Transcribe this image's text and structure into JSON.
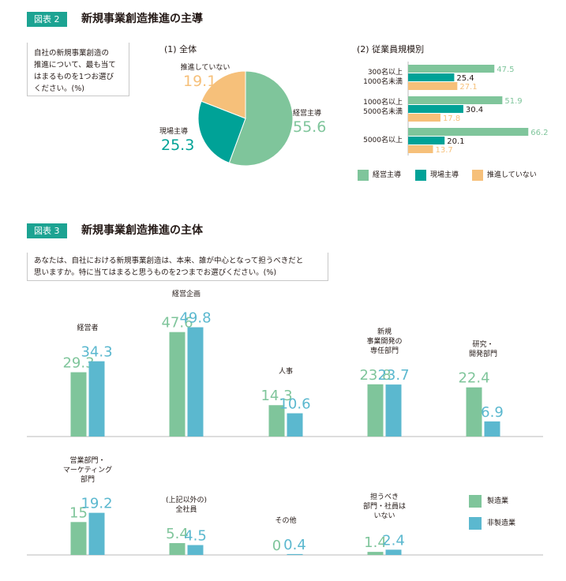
{
  "colors": {
    "keiei": "#7fc59b",
    "genba": "#00a297",
    "none": "#f6c07a",
    "mfg": "#7fc59b",
    "nonmfg": "#5bb8cf",
    "teal": "#1ca392",
    "axis": "#bbbbbb"
  },
  "fig2": {
    "badge": "図表 2",
    "title": "新規事業創造推進の主導",
    "question": [
      "自社の新規事業創造の",
      "推進について、最も当て",
      "はまるものを1つお選び",
      "ください。(%)"
    ],
    "pie_title": "(1) 全体",
    "bar_title": "(2) 従業員規模別"
  },
  "fig3": {
    "badge": "図表 3",
    "title": "新規事業創造推進の主体",
    "question": [
      "あなたは、自社における新規事業創造は、本来、誰が中心となって担うべきだと",
      "思いますか。特に当てはまると思うものを2つまでお選びください。(%)"
    ]
  },
  "chart_data": [
    {
      "type": "pie",
      "title": "(1) 全体",
      "slices": [
        {
          "label": "経営主導",
          "value": 55.6,
          "color": "#7fc59b"
        },
        {
          "label": "現場主導",
          "value": 25.3,
          "color": "#00a297"
        },
        {
          "label": "推進していない",
          "value": 19.1,
          "color": "#f6c07a"
        }
      ]
    },
    {
      "type": "bar",
      "orientation": "horizontal",
      "title": "(2) 従業員規模別",
      "categories": [
        [
          "300名以上",
          "1000名未満"
        ],
        [
          "1000名以上",
          "5000名未満"
        ],
        [
          "5000名以上"
        ]
      ],
      "series": [
        {
          "name": "経営主導",
          "values": [
            47.5,
            51.9,
            66.2
          ],
          "color": "#7fc59b"
        },
        {
          "name": "現場主導",
          "values": [
            25.4,
            30.4,
            20.1
          ],
          "color": "#00a297"
        },
        {
          "name": "推進していない",
          "values": [
            27.1,
            17.8,
            13.7
          ],
          "color": "#f6c07a"
        }
      ],
      "legend": "bottom"
    },
    {
      "type": "bar",
      "orientation": "vertical",
      "categories": [
        [
          "経営者"
        ],
        [
          "経営企画"
        ],
        [
          "人事"
        ],
        [
          "新規",
          "事業開発の",
          "専任部門"
        ],
        [
          "研究・",
          "開発部門"
        ],
        [
          "営業部門・",
          "マーケティング",
          "部門"
        ],
        [
          "(上記以外の)",
          "全社員"
        ],
        [
          "その他"
        ],
        [
          "担うべき",
          "部門・社員は",
          "いない"
        ]
      ],
      "series": [
        {
          "name": "製造業",
          "values": [
            29.3,
            47.6,
            14.3,
            23.8,
            22.4,
            15,
            5.4,
            0,
            1.4
          ],
          "color": "#7fc59b"
        },
        {
          "name": "非製造業",
          "values": [
            34.3,
            49.8,
            10.6,
            23.7,
            6.9,
            19.2,
            4.5,
            0.4,
            2.4
          ],
          "color": "#5bb8cf"
        }
      ],
      "legend": "right"
    }
  ]
}
